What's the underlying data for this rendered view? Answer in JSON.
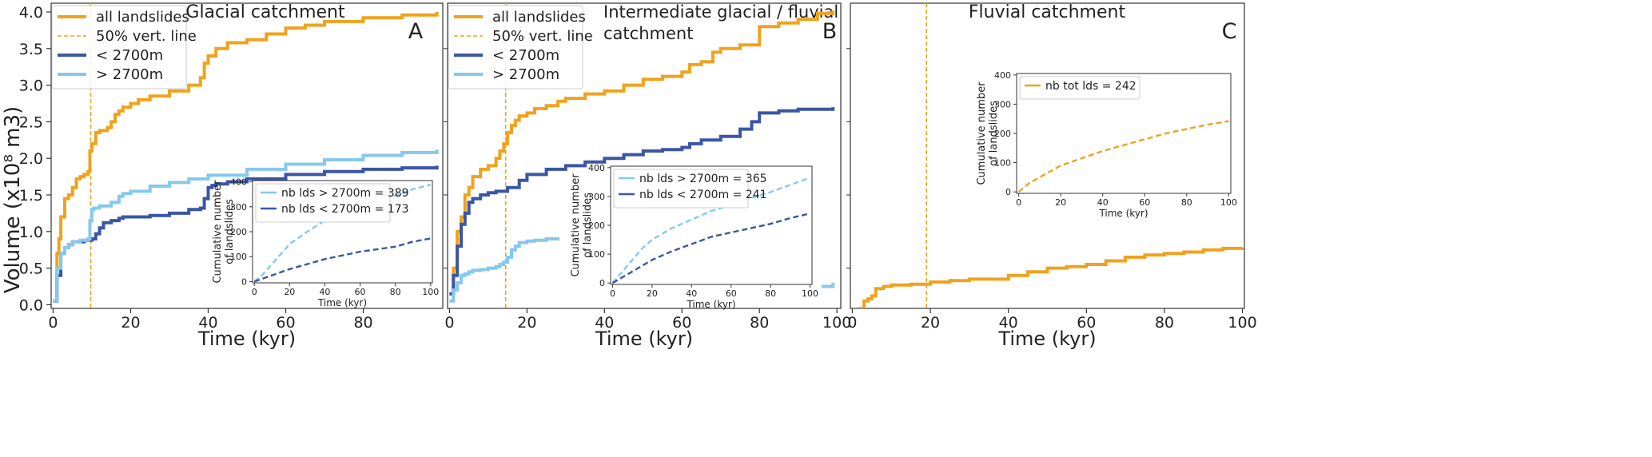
{
  "figure": {
    "y_axis_label": "Volume (x10⁸ m3)",
    "colors": {
      "all": "#f0a21e",
      "low": "#3a56a4",
      "high": "#86c8ee"
    }
  },
  "chart_data": [
    {
      "id": "A",
      "type": "line",
      "title": "Glacial catchment",
      "panel_label": "A",
      "xlabel": "Time (kyr)",
      "ylabel": "Volume (x10⁸ m3)",
      "xlim": [
        -0.5,
        100.5
      ],
      "ylim": [
        -0.05,
        4.12
      ],
      "xticks": [
        "0",
        "20",
        "40",
        "60",
        "80"
      ],
      "yticks": [
        "0.0",
        "0.5",
        "1.0",
        "1.5",
        "2.0",
        "2.5",
        "3.0",
        "3.5",
        "4.0"
      ],
      "legend": {
        "position": "top-left",
        "entries": [
          "all landslides",
          "50% vert. line",
          "< 2700m",
          "> 2700m"
        ]
      },
      "vline": 9.7,
      "series": [
        {
          "name": "all landslides",
          "style": "solid",
          "x": [
            0,
            1,
            1.5,
            2,
            3,
            4,
            5,
            6,
            7,
            8,
            9,
            9.5,
            10,
            11,
            12,
            14,
            15,
            16,
            17,
            18,
            20,
            22,
            25,
            30,
            35,
            38,
            39,
            40,
            42,
            45,
            50,
            55,
            60,
            65,
            70,
            80,
            90,
            99
          ],
          "y": [
            0.05,
            0.7,
            0.9,
            1.2,
            1.45,
            1.5,
            1.6,
            1.72,
            1.75,
            1.78,
            1.82,
            2.1,
            2.2,
            2.35,
            2.38,
            2.42,
            2.5,
            2.6,
            2.65,
            2.7,
            2.75,
            2.8,
            2.85,
            2.92,
            3.0,
            3.1,
            3.3,
            3.4,
            3.5,
            3.58,
            3.62,
            3.7,
            3.78,
            3.82,
            3.87,
            3.92,
            3.96,
            4.0
          ]
        },
        {
          "name": "< 2700m",
          "style": "solid",
          "x": [
            0,
            1,
            2,
            3,
            4,
            5,
            6,
            8,
            10,
            11,
            12,
            13,
            15,
            17,
            18,
            20,
            25,
            30,
            35,
            38,
            39,
            40,
            41,
            42,
            45,
            50,
            60,
            70,
            80,
            90,
            99
          ],
          "y": [
            0.05,
            0.4,
            0.7,
            0.78,
            0.82,
            0.86,
            0.86,
            0.88,
            0.9,
            0.97,
            1.05,
            1.12,
            1.15,
            1.18,
            1.2,
            1.2,
            1.22,
            1.25,
            1.3,
            1.32,
            1.45,
            1.6,
            1.63,
            1.65,
            1.68,
            1.72,
            1.78,
            1.82,
            1.85,
            1.87,
            1.9
          ]
        },
        {
          "name": "> 2700m",
          "style": "solid",
          "x": [
            0,
            1,
            2,
            3,
            4,
            5,
            7,
            9,
            9.5,
            10,
            10.5,
            12,
            15,
            17,
            18,
            20,
            25,
            30,
            35,
            40,
            50,
            60,
            70,
            80,
            90,
            99
          ],
          "y": [
            0.05,
            0.5,
            0.7,
            0.78,
            0.82,
            0.86,
            0.88,
            0.9,
            1.15,
            1.3,
            1.32,
            1.35,
            1.4,
            1.48,
            1.52,
            1.55,
            1.62,
            1.67,
            1.72,
            1.77,
            1.85,
            1.92,
            1.98,
            2.04,
            2.08,
            2.12
          ]
        }
      ],
      "inset": {
        "ylabel": "Cumulative number of landslides",
        "ylabel_line1": "Cumulative number",
        "ylabel_line2": "of landslides",
        "xlabel": "Time (kyr)",
        "xlim": [
          -1,
          101
        ],
        "ylim": [
          -5,
          405
        ],
        "xticks": [
          "0",
          "20",
          "40",
          "60",
          "80",
          "100"
        ],
        "yticks": [
          "0",
          "100",
          "200",
          "300",
          "400"
        ],
        "legend": {
          "position": "top-left",
          "entries": [
            "nb lds > 2700m = 389",
            "nb lds < 2700m = 173"
          ]
        },
        "series": [
          {
            "name": "nb lds > 2700m = 389",
            "style": "dashed",
            "x": [
              0,
              5,
              10,
              15,
              20,
              30,
              40,
              50,
              60,
              70,
              80,
              90,
              100
            ],
            "y": [
              0,
              30,
              70,
              110,
              150,
              200,
              245,
              275,
              300,
              320,
              345,
              370,
              389
            ]
          },
          {
            "name": "nb lds < 2700m = 173",
            "style": "dashed",
            "x": [
              0,
              10,
              20,
              30,
              40,
              50,
              60,
              70,
              80,
              90,
              100
            ],
            "y": [
              0,
              25,
              50,
              70,
              90,
              105,
              120,
              130,
              140,
              160,
              173
            ]
          }
        ]
      }
    },
    {
      "id": "B",
      "type": "line",
      "title": "Intermediate glacial / fluvial catchment",
      "title_line1": "Intermediate glacial / fluvial",
      "title_line2": "catchment",
      "panel_label": "B",
      "xlabel": "Time (kyr)",
      "ylabel": "Volume (x10⁸ m3)",
      "xlim": [
        -0.5,
        101
      ],
      "ylim": [
        -0.05,
        4.12
      ],
      "xticks": [
        "0",
        "20",
        "40",
        "60",
        "80",
        "100"
      ],
      "yticks": [],
      "legend": {
        "position": "top-left",
        "entries": [
          "all landslides",
          "50% vert. line",
          "< 2700m",
          "> 2700m"
        ]
      },
      "vline": 14.5,
      "series": [
        {
          "name": "all landslides",
          "style": "solid",
          "x": [
            0,
            1,
            2,
            3,
            4,
            5,
            6,
            8,
            10,
            12,
            13,
            14,
            15,
            16,
            17,
            18,
            20,
            22,
            25,
            28,
            30,
            35,
            40,
            45,
            50,
            55,
            60,
            62,
            65,
            68,
            70,
            75,
            80,
            85,
            90,
            95,
            99
          ],
          "y": [
            0.15,
            0.5,
            1.0,
            1.2,
            1.5,
            1.6,
            1.75,
            1.85,
            1.9,
            2.0,
            2.1,
            2.2,
            2.35,
            2.45,
            2.52,
            2.58,
            2.62,
            2.68,
            2.72,
            2.78,
            2.82,
            2.88,
            2.92,
            3.0,
            3.08,
            3.12,
            3.18,
            3.28,
            3.32,
            3.45,
            3.5,
            3.55,
            3.8,
            3.85,
            3.9,
            3.98,
            4.02
          ]
        },
        {
          "name": "< 2700m",
          "style": "solid",
          "x": [
            0,
            1,
            2,
            3,
            4,
            5,
            6,
            8,
            10,
            12,
            15,
            18,
            20,
            25,
            30,
            35,
            40,
            45,
            50,
            55,
            60,
            62,
            65,
            70,
            75,
            78,
            80,
            85,
            90,
            99
          ],
          "y": [
            0.15,
            0.4,
            0.8,
            1.1,
            1.25,
            1.4,
            1.45,
            1.5,
            1.53,
            1.55,
            1.6,
            1.7,
            1.78,
            1.85,
            1.9,
            1.95,
            2.0,
            2.05,
            2.1,
            2.12,
            2.15,
            2.2,
            2.25,
            2.3,
            2.4,
            2.5,
            2.62,
            2.65,
            2.67,
            2.7
          ]
        },
        {
          "name": "> 2700m",
          "style": "solid",
          "x": [
            0,
            1,
            2,
            3,
            4,
            5,
            6,
            8,
            10,
            12,
            13,
            14,
            15,
            16,
            17,
            18,
            20,
            22,
            25,
            28
          ],
          "y": [
            0.05,
            0.2,
            0.3,
            0.4,
            0.42,
            0.45,
            0.47,
            0.48,
            0.5,
            0.52,
            0.55,
            0.58,
            0.65,
            0.75,
            0.8,
            0.85,
            0.87,
            0.88,
            0.9,
            0.92
          ]
        },
        {
          "name": "> 2700m (end)",
          "style": "solid",
          "x": [
            96,
            99
          ],
          "y": [
            0.25,
            0.3
          ]
        }
      ],
      "inset": {
        "ylabel": "Cumulative number of landslides",
        "ylabel_line1": "Cumulative number",
        "ylabel_line2": "of landslides",
        "xlabel": "Time (kyr)",
        "xlim": [
          -1,
          101
        ],
        "ylim": [
          -5,
          405
        ],
        "xticks": [
          "0",
          "20",
          "40",
          "60",
          "80",
          "100"
        ],
        "yticks": [
          "0",
          "100",
          "200",
          "300",
          "400"
        ],
        "legend": {
          "position": "top-left",
          "entries": [
            "nb lds > 2700m = 365",
            "nb lds < 2700m = 241"
          ]
        },
        "series": [
          {
            "name": "nb lds > 2700m = 365",
            "style": "dashed",
            "x": [
              0,
              5,
              10,
              15,
              20,
              30,
              40,
              50,
              60,
              70,
              80,
              90,
              100
            ],
            "y": [
              0,
              40,
              80,
              120,
              150,
              190,
              220,
              250,
              270,
              295,
              315,
              340,
              365
            ]
          },
          {
            "name": "nb lds < 2700m = 241",
            "style": "dashed",
            "x": [
              0,
              10,
              20,
              30,
              40,
              50,
              60,
              70,
              80,
              90,
              100
            ],
            "y": [
              0,
              40,
              80,
              110,
              135,
              160,
              175,
              190,
              205,
              225,
              241
            ]
          }
        ]
      }
    },
    {
      "id": "C",
      "type": "line",
      "title": "Fluvial catchment",
      "panel_label": "C",
      "xlabel": "Time (kyr)",
      "ylabel": "Volume (x10⁸ m3)",
      "xlim": [
        -0.5,
        100.5
      ],
      "ylim": [
        -0.05,
        4.12
      ],
      "xticks": [
        "0",
        "20",
        "40",
        "60",
        "80",
        "100"
      ],
      "yticks": [],
      "legend": null,
      "vline": 19,
      "series": [
        {
          "name": "all landslides",
          "style": "solid",
          "x": [
            0,
            1,
            2,
            3,
            4,
            5,
            6,
            8,
            10,
            15,
            20,
            25,
            30,
            40,
            45,
            50,
            55,
            60,
            65,
            70,
            75,
            80,
            85,
            90,
            95,
            100
          ],
          "y": [
            -0.15,
            -0.1,
            -0.05,
            0.05,
            0.08,
            0.12,
            0.22,
            0.25,
            0.27,
            0.28,
            0.31,
            0.33,
            0.35,
            0.4,
            0.45,
            0.5,
            0.52,
            0.55,
            0.6,
            0.65,
            0.68,
            0.7,
            0.72,
            0.75,
            0.77,
            0.78
          ]
        }
      ],
      "inset": {
        "ylabel": "Cumulative number of landslides",
        "ylabel_line1": "Cumulative number",
        "ylabel_line2": "of landslides",
        "xlabel": "Time (kyr)",
        "xlim": [
          -1,
          101
        ],
        "ylim": [
          -5,
          405
        ],
        "xticks": [
          "0",
          "20",
          "40",
          "60",
          "80",
          "100"
        ],
        "yticks": [
          "0",
          "100",
          "200",
          "300",
          "400"
        ],
        "legend": {
          "position": "top-left",
          "entries": [
            "nb tot lds = 242"
          ]
        },
        "series": [
          {
            "name": "nb tot lds = 242",
            "style": "dashed",
            "x": [
              0,
              5,
              10,
              15,
              20,
              30,
              40,
              50,
              60,
              70,
              80,
              90,
              100
            ],
            "y": [
              0,
              30,
              50,
              70,
              90,
              115,
              140,
              160,
              180,
              200,
              215,
              230,
              242
            ]
          }
        ]
      }
    }
  ]
}
